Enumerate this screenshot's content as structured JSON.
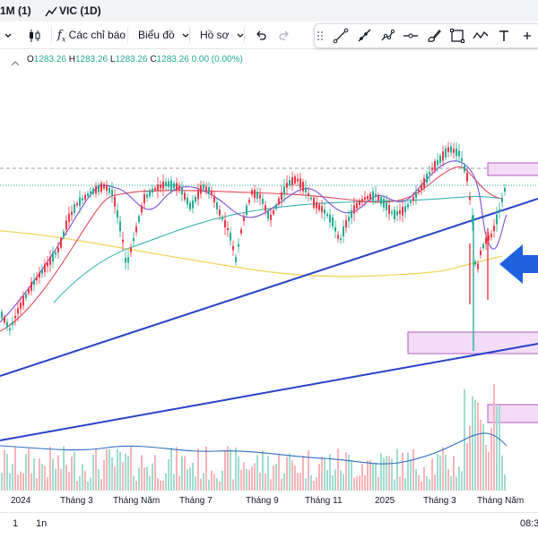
{
  "tabs": [
    {
      "label": "1M (1)"
    },
    {
      "label": "VIC (1D)"
    }
  ],
  "toolbar": {
    "indicators_label": "Các chỉ báo",
    "chart_label": "Biểu đồ",
    "profile_label": "Hồ sơ"
  },
  "ohlc": {
    "o_label": "O",
    "o_value": "1283.26",
    "h_label": "H",
    "h_value": "1283.26",
    "l_label": "L",
    "l_value": "1283.26",
    "c_label": "C",
    "c_value": "1283.26",
    "change": "0.00 (0.00%)"
  },
  "x_axis_labels": [
    "2024",
    "Tháng 3",
    "Tháng Năm",
    "Tháng 7",
    "Tháng 9",
    "Tháng 11",
    "2025",
    "Tháng 3",
    "Tháng Năm"
  ],
  "bottom": {
    "range_a": "1",
    "range_b": "1n",
    "time": "08:3"
  },
  "colors": {
    "up": "#22ab94",
    "down": "#f23645",
    "trendline": "#2742c9",
    "zone_fill": "#e9c8f0",
    "zone_border": "#b35ac2",
    "arrow": "#1f62e0",
    "ma_red": "#e0485a",
    "ma_purple": "#7b4fd6",
    "ma_teal": "#36b5b0",
    "ma_yellow": "#f0d45a",
    "volume_line": "#2f6fc2"
  }
}
